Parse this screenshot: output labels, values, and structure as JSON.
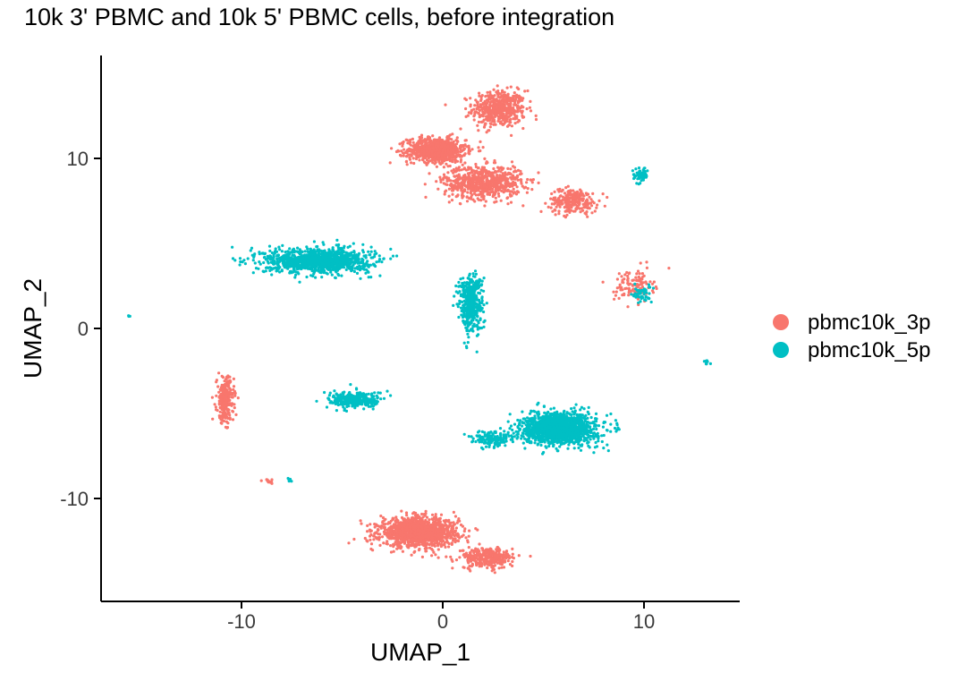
{
  "chart_data": {
    "type": "scatter",
    "title": "10k 3' PBMC and 10k 5' PBMC cells, before integration",
    "xlabel": "UMAP_1",
    "ylabel": "UMAP_2",
    "xlim": [
      -17,
      15
    ],
    "ylim": [
      -16,
      16
    ],
    "xticks": [
      -10,
      0,
      10
    ],
    "yticks": [
      -10,
      0,
      10
    ],
    "grid": false,
    "legend_position": "right",
    "series": [
      {
        "name": "pbmc10k_3p",
        "color": "#F8766D",
        "clusters": [
          {
            "label": "upper-top",
            "center": [
              2.8,
              12.9
            ],
            "spread": [
              1.1,
              0.9
            ],
            "n": 500
          },
          {
            "label": "upper-left-blob",
            "center": [
              -0.3,
              10.5
            ],
            "spread": [
              1.2,
              0.6
            ],
            "n": 800
          },
          {
            "label": "upper-middle",
            "center": [
              2.0,
              8.6
            ],
            "spread": [
              1.6,
              0.8
            ],
            "n": 700
          },
          {
            "label": "upper-tail",
            "center": [
              6.5,
              7.5
            ],
            "spread": [
              1.0,
              0.6
            ],
            "n": 250
          },
          {
            "label": "upper-tail-end",
            "center": [
              9.5,
              2.5
            ],
            "spread": [
              0.8,
              0.8
            ],
            "n": 120
          },
          {
            "label": "left-strip",
            "center": [
              -10.8,
              -4.2
            ],
            "spread": [
              0.35,
              1.1
            ],
            "n": 250
          },
          {
            "label": "small-left",
            "center": [
              -8.6,
              -9.0
            ],
            "spread": [
              0.25,
              0.1
            ],
            "n": 12
          },
          {
            "label": "bottom-blob",
            "center": [
              -1.2,
              -12.0
            ],
            "spread": [
              1.6,
              0.7
            ],
            "n": 1300
          },
          {
            "label": "bottom-tail",
            "center": [
              2.2,
              -13.5
            ],
            "spread": [
              1.1,
              0.5
            ],
            "n": 300
          }
        ]
      },
      {
        "name": "pbmc10k_5p",
        "color": "#00BFC4",
        "clusters": [
          {
            "label": "left-upper",
            "center": [
              -6.2,
              4.0
            ],
            "spread": [
              2.2,
              0.6
            ],
            "n": 1100
          },
          {
            "label": "mid-upper",
            "center": [
              1.4,
              1.5
            ],
            "spread": [
              0.5,
              1.4
            ],
            "n": 450
          },
          {
            "label": "right-upper",
            "center": [
              9.8,
              9.0
            ],
            "spread": [
              0.3,
              0.4
            ],
            "n": 60
          },
          {
            "label": "right-lower-tail",
            "center": [
              9.9,
              2.0
            ],
            "spread": [
              0.4,
              0.4
            ],
            "n": 50
          },
          {
            "label": "mid-left",
            "center": [
              -4.3,
              -4.2
            ],
            "spread": [
              1.1,
              0.4
            ],
            "n": 300
          },
          {
            "label": "right-big",
            "center": [
              5.8,
              -5.9
            ],
            "spread": [
              1.5,
              0.75
            ],
            "n": 1500
          },
          {
            "label": "right-big-tail",
            "center": [
              2.5,
              -6.5
            ],
            "spread": [
              0.9,
              0.4
            ],
            "n": 150
          },
          {
            "label": "isolated-left",
            "center": [
              -15.6,
              0.7
            ],
            "spread": [
              0.05,
              0.05
            ],
            "n": 3
          },
          {
            "label": "isolated-right",
            "center": [
              13.1,
              -2.0
            ],
            "spread": [
              0.15,
              0.15
            ],
            "n": 8
          },
          {
            "label": "small-left-bottom",
            "center": [
              -7.6,
              -8.9
            ],
            "spread": [
              0.1,
              0.1
            ],
            "n": 6
          }
        ]
      }
    ],
    "legend": [
      {
        "label": "pbmc10k_3p",
        "color": "#F8766D"
      },
      {
        "label": "pbmc10k_5p",
        "color": "#00BFC4"
      }
    ]
  }
}
